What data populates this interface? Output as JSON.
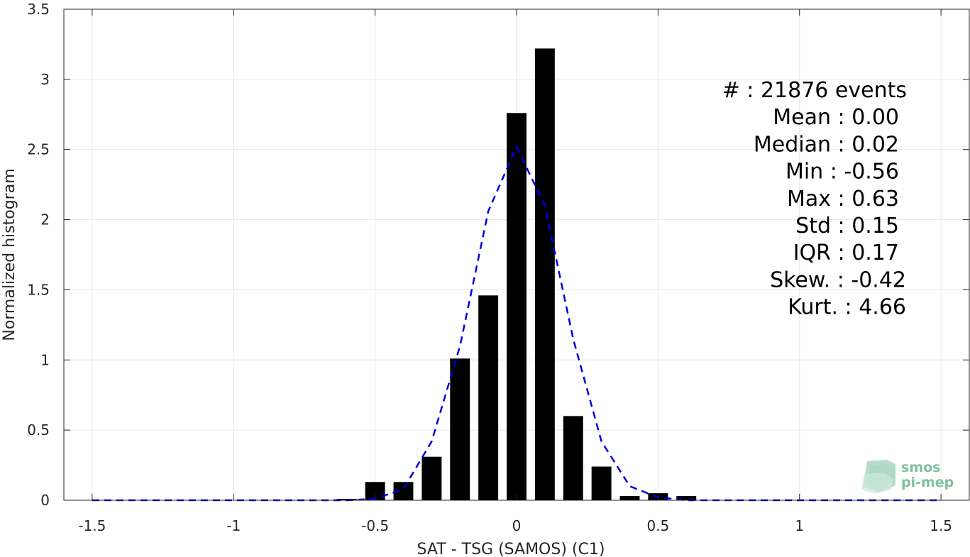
{
  "chart_data": {
    "type": "bar",
    "xlabel": "SAT - TSG (SAMOS) (C1)",
    "ylabel": "Normalized histogram",
    "xlim": [
      -1.6,
      1.6
    ],
    "ylim": [
      0,
      3.5
    ],
    "xticks": [
      -1.5,
      -1,
      -0.5,
      0,
      0.5,
      1,
      1.5
    ],
    "xtick_labels": [
      "-1.5",
      "-1",
      "-0.5",
      "0",
      "0.5",
      "1",
      "1.5"
    ],
    "yticks": [
      0,
      0.5,
      1,
      1.5,
      2,
      2.5,
      3,
      3.5
    ],
    "ytick_labels": [
      "0",
      "0.5",
      "1",
      "1.5",
      "2",
      "2.5",
      "3",
      "3.5"
    ],
    "grid": true,
    "bar_color": "#000000",
    "bar_width": 0.07,
    "bars": {
      "x": [
        -0.6,
        -0.5,
        -0.4,
        -0.3,
        -0.2,
        -0.1,
        0.0,
        0.1,
        0.2,
        0.3,
        0.4,
        0.5,
        0.6
      ],
      "values": [
        0.01,
        0.13,
        0.13,
        0.31,
        1.01,
        1.46,
        2.76,
        3.22,
        0.6,
        0.24,
        0.03,
        0.05,
        0.03
      ]
    },
    "fit_curve": {
      "style": "dashed",
      "color": "#0000dd",
      "x": [
        -1.5,
        -1.4,
        -1.3,
        -1.2,
        -1.1,
        -1.0,
        -0.9,
        -0.8,
        -0.7,
        -0.6,
        -0.5,
        -0.4,
        -0.3,
        -0.2,
        -0.1,
        0.0,
        0.1,
        0.2,
        0.3,
        0.4,
        0.5,
        0.6,
        0.7,
        0.8,
        0.9,
        1.0,
        1.1,
        1.2,
        1.3,
        1.4,
        1.5
      ],
      "y": [
        0,
        0,
        0,
        0,
        0,
        0,
        0,
        0,
        0,
        0,
        0.01,
        0.08,
        0.42,
        1.1,
        2.06,
        2.52,
        2.1,
        1.15,
        0.42,
        0.1,
        0.02,
        0,
        0,
        0,
        0,
        0,
        0,
        0,
        0,
        0,
        0
      ]
    },
    "annotations": [
      "#  : 21876 events",
      "Mean : 0.00",
      "Median : 0.02",
      "Min : -0.56",
      "Max : 0.63",
      "Std : 0.15",
      "IQR : 0.17",
      "Skew. : -0.42",
      "Kurt. : 4.66"
    ]
  },
  "logo": {
    "line1": "smos",
    "line2": "pi-mep",
    "color": "#7fbf9f"
  }
}
